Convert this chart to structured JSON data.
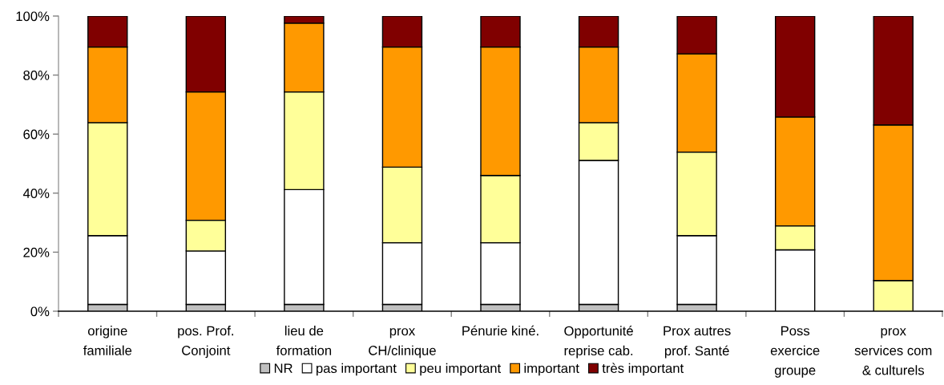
{
  "chart_data": {
    "type": "bar",
    "stacked": true,
    "categories": [
      "origine\nfamiliale",
      "pos. Prof.\nConjoint",
      "lieu de\nformation",
      "prox\nCH/clinique",
      "Pénurie kiné.",
      "Opportunité\nreprise cab.",
      "Prox autres\nprof. Santé",
      "Poss\nexercice\ngroupe",
      "prox\nservices com\n& culturels"
    ],
    "series": [
      {
        "name": "NR",
        "color": "#c0c0c0",
        "values": [
          2.3,
          2.3,
          2.3,
          2.3,
          2.3,
          2.3,
          2.3,
          0,
          0
        ]
      },
      {
        "name": "pas important",
        "color": "#ffffff",
        "values": [
          23.3,
          18.1,
          38.9,
          20.9,
          20.9,
          48.8,
          23.3,
          20.8,
          0
        ]
      },
      {
        "name": "peu important",
        "color": "#ffff99",
        "values": [
          38.3,
          10.4,
          33.1,
          25.6,
          22.8,
          12.8,
          28.3,
          8.1,
          10.4
        ]
      },
      {
        "name": "important",
        "color": "#ff9900",
        "values": [
          25.6,
          43.5,
          23.3,
          40.7,
          43.5,
          25.6,
          33.3,
          36.9,
          52.7
        ]
      },
      {
        "name": "très important",
        "color": "#800000",
        "values": [
          10.5,
          25.7,
          2.4,
          10.5,
          10.5,
          10.5,
          12.8,
          34.2,
          36.9
        ]
      }
    ],
    "ylim": [
      0,
      100
    ],
    "yticks": [
      {
        "value": 0,
        "label": "0%"
      },
      {
        "value": 20,
        "label": "20%"
      },
      {
        "value": 40,
        "label": "40%"
      },
      {
        "value": 60,
        "label": "60%"
      },
      {
        "value": 80,
        "label": "80%"
      },
      {
        "value": 100,
        "label": "100%"
      }
    ],
    "grid": false,
    "legend": "bottom"
  }
}
